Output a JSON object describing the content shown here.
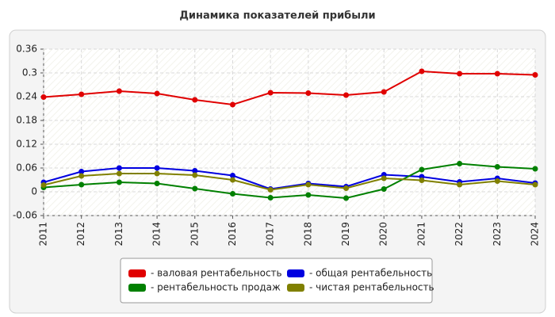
{
  "chart_data": {
    "type": "line",
    "title": "Динамика показателей прибыли",
    "x": [
      2011,
      2012,
      2013,
      2014,
      2015,
      2016,
      2017,
      2018,
      2019,
      2020,
      2021,
      2022,
      2023,
      2024
    ],
    "xlim": [
      2011,
      2024
    ],
    "ylim": [
      -0.06,
      0.36
    ],
    "yticks": [
      -0.06,
      0,
      0.06,
      0.12,
      0.18,
      0.24,
      0.3,
      0.36
    ],
    "grid": true,
    "series": [
      {
        "name": "- валовая рентабельность",
        "color": "#e00000",
        "values": [
          0.239,
          0.246,
          0.254,
          0.248,
          0.232,
          0.22,
          0.25,
          0.249,
          0.244,
          0.252,
          0.304,
          0.298,
          0.298,
          0.295
        ]
      },
      {
        "name": "- общая рентабельность",
        "color": "#0000e0",
        "values": [
          0.024,
          0.051,
          0.06,
          0.06,
          0.053,
          0.041,
          0.007,
          0.021,
          0.013,
          0.043,
          0.038,
          0.025,
          0.034,
          0.022
        ]
      },
      {
        "name": "- рентабельность продаж",
        "color": "#008000",
        "values": [
          0.011,
          0.018,
          0.024,
          0.021,
          0.008,
          -0.005,
          -0.015,
          -0.008,
          -0.016,
          0.007,
          0.056,
          0.071,
          0.063,
          0.058
        ]
      },
      {
        "name": "- чистая рентабельность",
        "color": "#808000",
        "values": [
          0.017,
          0.04,
          0.046,
          0.046,
          0.042,
          0.03,
          0.005,
          0.018,
          0.009,
          0.034,
          0.029,
          0.018,
          0.027,
          0.018
        ]
      }
    ]
  }
}
